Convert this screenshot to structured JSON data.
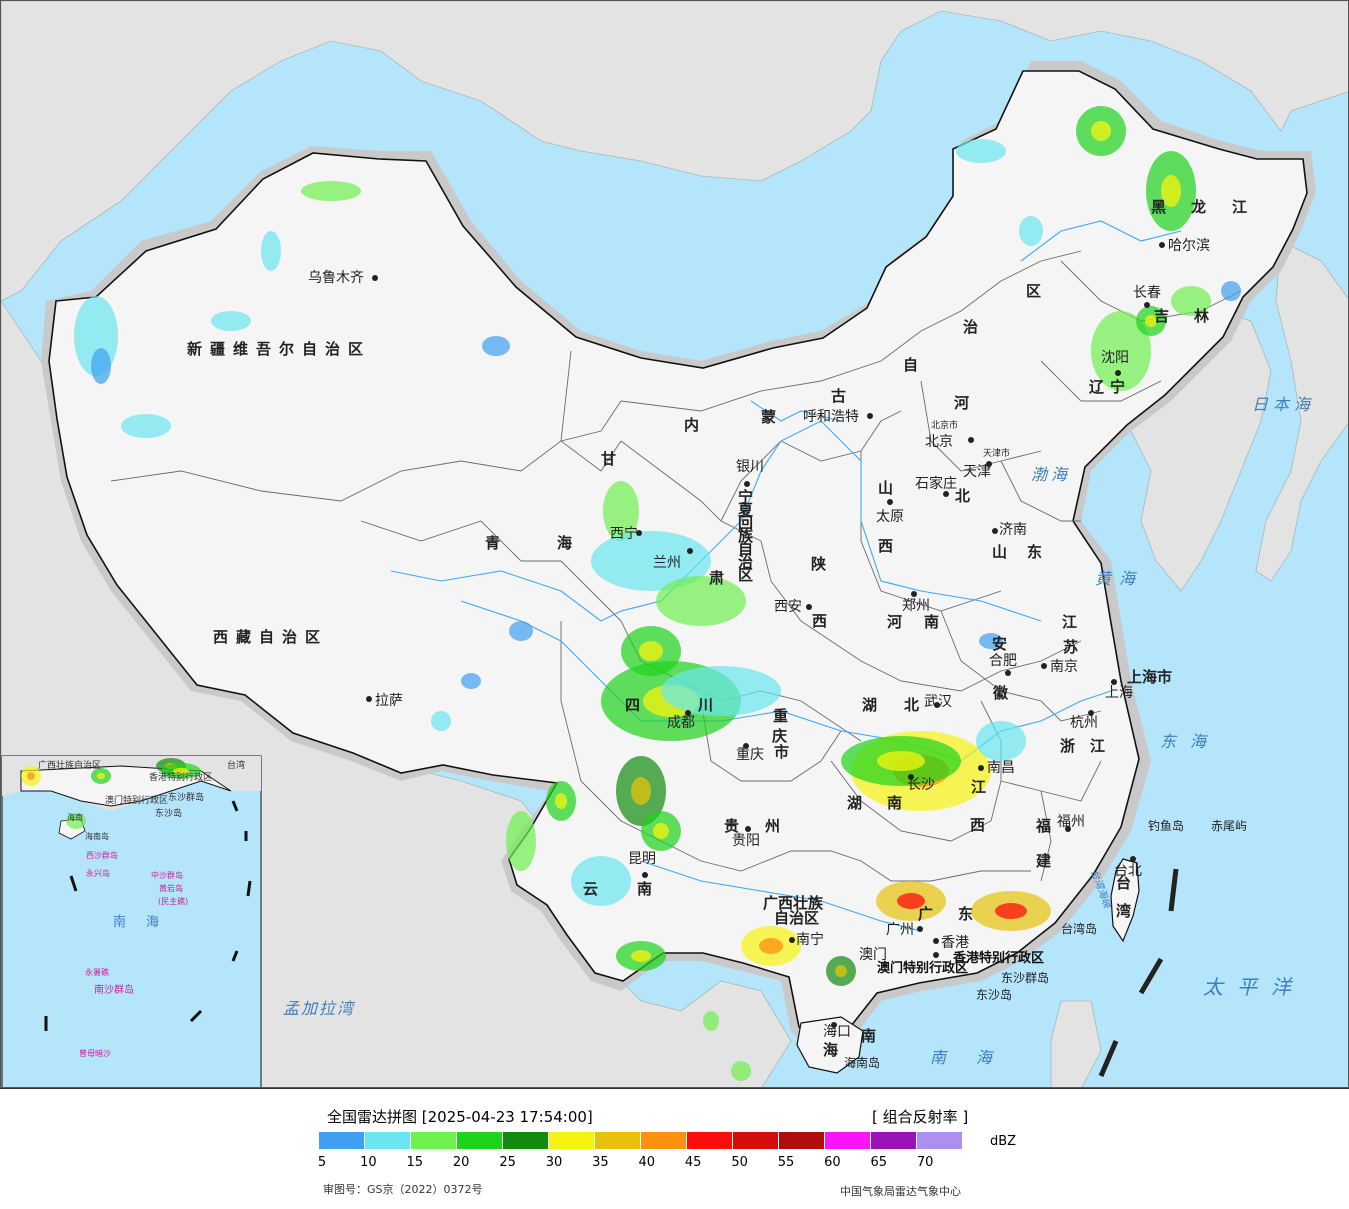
{
  "map": {
    "type": "weather radar composite reflectivity map",
    "colors": {
      "sea": "#b5e5fb",
      "land_china": "#f4f5f4",
      "land_foreign": "#e3e3e3",
      "halo": "#c9c9c9",
      "border": "#111111",
      "river": "#3fa9f5",
      "islands": "#cc1f9e"
    },
    "provinces": [
      {
        "id": "xinjiang",
        "label": "新疆维吾尔自治区"
      },
      {
        "id": "xizang",
        "label": "西藏自治区"
      },
      {
        "id": "qinghai-1",
        "label": "青"
      },
      {
        "id": "qinghai-2",
        "label": "海"
      },
      {
        "id": "gansu-1",
        "label": "甘"
      },
      {
        "id": "gansu-2",
        "label": "肃"
      },
      {
        "id": "neimenggu-1",
        "label": "内"
      },
      {
        "id": "neimenggu-2",
        "label": "蒙"
      },
      {
        "id": "neimenggu-3",
        "label": "古"
      },
      {
        "id": "neimenggu-4",
        "label": "自"
      },
      {
        "id": "neimenggu-5",
        "label": "治"
      },
      {
        "id": "neimenggu-6",
        "label": "区"
      },
      {
        "id": "heilongjiang-1",
        "label": "黑"
      },
      {
        "id": "heilongjiang-2",
        "label": "龙"
      },
      {
        "id": "heilongjiang-3",
        "label": "江"
      },
      {
        "id": "jilin-1",
        "label": "吉"
      },
      {
        "id": "jilin-2",
        "label": "林"
      },
      {
        "id": "liaoning-1",
        "label": "辽"
      },
      {
        "id": "liaoning-2",
        "label": "宁"
      },
      {
        "id": "hebei-1",
        "label": "河"
      },
      {
        "id": "hebei-2",
        "label": "北"
      },
      {
        "id": "shanxi-1",
        "label": "山"
      },
      {
        "id": "shanxi-2",
        "label": "西"
      },
      {
        "id": "shandong-1",
        "label": "山"
      },
      {
        "id": "shandong-2",
        "label": "东"
      },
      {
        "id": "shaanxi-1",
        "label": "陕"
      },
      {
        "id": "shaanxi-2",
        "label": "西"
      },
      {
        "id": "henan-1",
        "label": "河"
      },
      {
        "id": "henan-2",
        "label": "南"
      },
      {
        "id": "jiangsu-1",
        "label": "江"
      },
      {
        "id": "jiangsu-2",
        "label": "苏"
      },
      {
        "id": "anhui-1",
        "label": "安"
      },
      {
        "id": "anhui-2",
        "label": "徽"
      },
      {
        "id": "shanghai",
        "label": "上海市"
      },
      {
        "id": "zhejiang-1",
        "label": "浙"
      },
      {
        "id": "zhejiang-2",
        "label": "江"
      },
      {
        "id": "hubei-1",
        "label": "湖"
      },
      {
        "id": "hubei-2",
        "label": "北"
      },
      {
        "id": "sichuan-1",
        "label": "四"
      },
      {
        "id": "sichuan-2",
        "label": "川"
      },
      {
        "id": "chongqing-1",
        "label": "重"
      },
      {
        "id": "chongqing-2",
        "label": "庆"
      },
      {
        "id": "chongqing-3",
        "label": "市"
      },
      {
        "id": "ningxia-1",
        "label": "宁"
      },
      {
        "id": "ningxia-2",
        "label": "夏"
      },
      {
        "id": "ningxia-3",
        "label": "回"
      },
      {
        "id": "ningxia-4",
        "label": "族"
      },
      {
        "id": "ningxia-5",
        "label": "自"
      },
      {
        "id": "ningxia-6",
        "label": "治"
      },
      {
        "id": "ningxia-7",
        "label": "区"
      },
      {
        "id": "guizhou-1",
        "label": "贵"
      },
      {
        "id": "guizhou-2",
        "label": "州"
      },
      {
        "id": "hunan-1",
        "label": "湖"
      },
      {
        "id": "hunan-2",
        "label": "南"
      },
      {
        "id": "jiangxi-1",
        "label": "江"
      },
      {
        "id": "jiangxi-2",
        "label": "西"
      },
      {
        "id": "fujian-1",
        "label": "福"
      },
      {
        "id": "fujian-2",
        "label": "建"
      },
      {
        "id": "yunnan-1",
        "label": "云"
      },
      {
        "id": "yunnan-2",
        "label": "南"
      },
      {
        "id": "guangxi-1",
        "label": "广西壮族"
      },
      {
        "id": "guangxi-2",
        "label": "自治区"
      },
      {
        "id": "guangdong-1",
        "label": "广"
      },
      {
        "id": "guangdong-2",
        "label": "东"
      },
      {
        "id": "hainan-1",
        "label": "海"
      },
      {
        "id": "hainan-2",
        "label": "南"
      },
      {
        "id": "taiwan-1",
        "label": "台"
      },
      {
        "id": "taiwan-2",
        "label": "湾"
      },
      {
        "id": "hongkong",
        "label": "香港特别行政区"
      },
      {
        "id": "macau",
        "label": "澳门特别行政区"
      }
    ],
    "cities": [
      {
        "name": "乌鲁木齐"
      },
      {
        "name": "拉萨"
      },
      {
        "name": "西宁"
      },
      {
        "name": "兰州"
      },
      {
        "name": "银川"
      },
      {
        "name": "呼和浩特"
      },
      {
        "name": "北京"
      },
      {
        "name": "北京市"
      },
      {
        "name": "天津"
      },
      {
        "name": "天津市"
      },
      {
        "name": "石家庄"
      },
      {
        "name": "太原"
      },
      {
        "name": "济南"
      },
      {
        "name": "郑州"
      },
      {
        "name": "西安"
      },
      {
        "name": "合肥"
      },
      {
        "name": "南京"
      },
      {
        "name": "上海"
      },
      {
        "name": "杭州"
      },
      {
        "name": "武汉"
      },
      {
        "name": "成都"
      },
      {
        "name": "重庆"
      },
      {
        "name": "贵阳"
      },
      {
        "name": "长沙"
      },
      {
        "name": "南昌"
      },
      {
        "name": "福州"
      },
      {
        "name": "昆明"
      },
      {
        "name": "南宁"
      },
      {
        "name": "广州"
      },
      {
        "name": "香港"
      },
      {
        "name": "澳门"
      },
      {
        "name": "海口"
      },
      {
        "name": "台北"
      },
      {
        "name": "沈阳"
      },
      {
        "name": "长春"
      },
      {
        "name": "哈尔滨"
      }
    ],
    "seas": [
      {
        "id": "japan-sea",
        "label": "日本海"
      },
      {
        "id": "bohai",
        "label": "渤海"
      },
      {
        "id": "yellow-sea",
        "label": "黄海"
      },
      {
        "id": "east-china-sea",
        "label": "东海"
      },
      {
        "id": "pacific",
        "label": "太平洋"
      },
      {
        "id": "south-china-sea",
        "label": "南海"
      },
      {
        "id": "bay-of-bengal",
        "label": "孟加拉湾"
      },
      {
        "id": "taiwan-strait",
        "label": "台湾海峡"
      }
    ],
    "islands": [
      {
        "id": "diaoyu",
        "label": "钓鱼岛"
      },
      {
        "id": "chiwei",
        "label": "赤尾屿"
      },
      {
        "id": "taiwan-island",
        "label": "台湾岛"
      },
      {
        "id": "dongsha-islands",
        "label": "东沙群岛"
      },
      {
        "id": "dongsha-island",
        "label": "东沙岛"
      },
      {
        "id": "hainan-island",
        "label": "海南岛"
      }
    ],
    "inset": {
      "labels": [
        {
          "id": "guangxi",
          "label": "广西壮族自治区"
        },
        {
          "id": "hongkong",
          "label": "香港特别行政区"
        },
        {
          "id": "macau",
          "label": "澳门特别行政区"
        },
        {
          "id": "taiwan",
          "label": "台湾"
        },
        {
          "id": "dongsha",
          "label": "东沙群岛"
        },
        {
          "id": "dongsha-dao",
          "label": "东沙岛"
        },
        {
          "id": "hainan",
          "label": "海南"
        },
        {
          "id": "hainan-dao",
          "label": "海南岛"
        },
        {
          "id": "xisha",
          "label": "西沙群岛"
        },
        {
          "id": "yongxing",
          "label": "永兴岛"
        },
        {
          "id": "zhongsha",
          "label": "中沙群岛"
        },
        {
          "id": "huangyan",
          "label": "黄岩岛"
        },
        {
          "id": "minzhu",
          "label": "(民主礁)"
        },
        {
          "id": "nanhai",
          "label": "南海"
        },
        {
          "id": "yongshu",
          "label": "永暑礁"
        },
        {
          "id": "nansha",
          "label": "南沙群岛"
        },
        {
          "id": "zengmu",
          "label": "曾母暗沙"
        }
      ]
    }
  },
  "legend": {
    "title": "全国雷达拼图 [2025-04-23 17:54:00]",
    "product": "[ 组合反射率 ]",
    "unit": "dBZ",
    "review_number": "审图号：GS京（2022）0372号",
    "source": "中国气象局雷达气象中心",
    "bins": [
      {
        "min": 5,
        "color": "#3f9ff1"
      },
      {
        "min": 10,
        "color": "#6ae6f0"
      },
      {
        "min": 15,
        "color": "#6ef04f"
      },
      {
        "min": 20,
        "color": "#1ed31b"
      },
      {
        "min": 25,
        "color": "#118a0f"
      },
      {
        "min": 30,
        "color": "#f5f30f"
      },
      {
        "min": 35,
        "color": "#e6c20a"
      },
      {
        "min": 40,
        "color": "#fc900f"
      },
      {
        "min": 45,
        "color": "#fc0d0d"
      },
      {
        "min": 50,
        "color": "#d40d0d"
      },
      {
        "min": 55,
        "color": "#b20c0c"
      },
      {
        "min": 60,
        "color": "#fa14fa"
      },
      {
        "min": 65,
        "color": "#9a13b8"
      },
      {
        "min": 70,
        "color": "#ad8ff0"
      }
    ],
    "ticks": [
      "5",
      "10",
      "15",
      "20",
      "25",
      "30",
      "35",
      "40",
      "45",
      "50",
      "55",
      "60",
      "65",
      "70"
    ]
  }
}
